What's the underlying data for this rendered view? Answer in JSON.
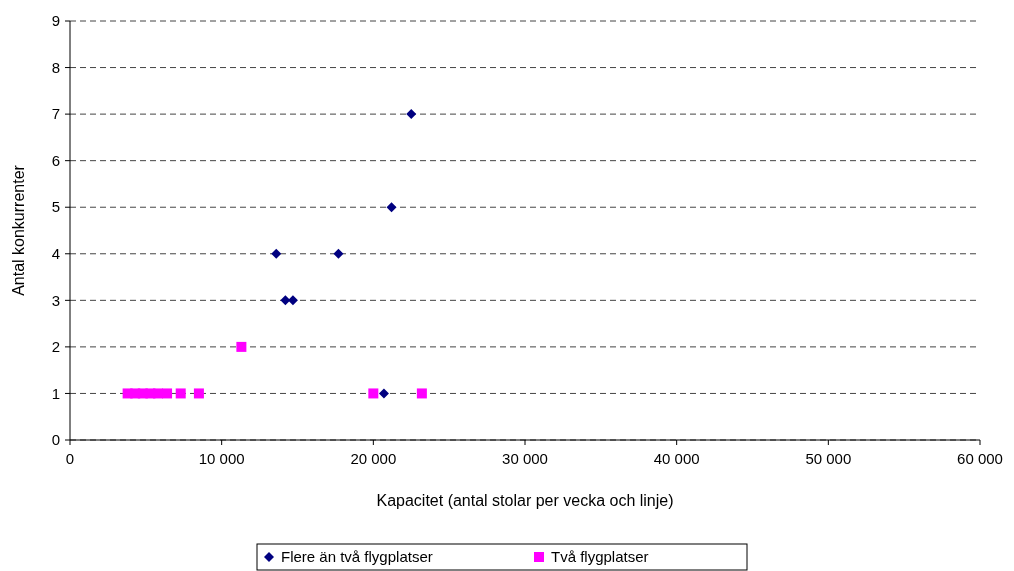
{
  "chart_data": {
    "type": "scatter",
    "xlabel": "Kapacitet (antal stolar per vecka och linje)",
    "ylabel": "Antal konkurrenter",
    "xlim": [
      0,
      60000
    ],
    "xticks": [
      {
        "value": 0,
        "label": "0"
      },
      {
        "value": 10000,
        "label": "10 000"
      },
      {
        "value": 20000,
        "label": "20 000"
      },
      {
        "value": 30000,
        "label": "30 000"
      },
      {
        "value": 40000,
        "label": "40 000"
      },
      {
        "value": 50000,
        "label": "50 000"
      },
      {
        "value": 60000,
        "label": "60 000"
      }
    ],
    "ylim": [
      0,
      9
    ],
    "yticks": [
      0,
      1,
      2,
      3,
      4,
      5,
      6,
      7,
      8,
      9
    ],
    "grid": "y",
    "legend": "bottom",
    "series": [
      {
        "name": "Flere än två flygplatser",
        "color": "#000080",
        "marker": "diamond",
        "x": [
          13600,
          14200,
          14700,
          17700,
          21200,
          22500,
          20700
        ],
        "values": [
          4,
          3,
          3,
          4,
          5,
          7,
          1
        ]
      },
      {
        "name": "Två flygplatser",
        "color": "#ff00ff",
        "marker": "square",
        "x": [
          3800,
          4300,
          4800,
          5300,
          5800,
          6400,
          7300,
          8500,
          11300,
          20000,
          23200
        ],
        "values": [
          1,
          1,
          1,
          1,
          1,
          1,
          1,
          1,
          2,
          1,
          1
        ]
      }
    ]
  }
}
